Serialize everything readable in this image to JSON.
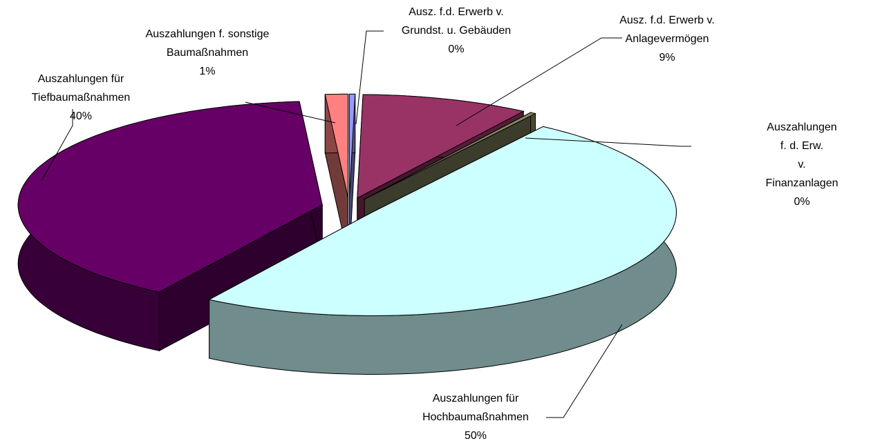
{
  "chart_data": {
    "type": "pie",
    "categories": [
      "Ausz. f.d. Erwerb v.\nGrundst. u. Gebäuden",
      "Ausz. f.d. Erwerb v.\nAnlagevermögen",
      "Auszahlungen f. d. Erw.\nv. Finanzanlagen",
      "Auszahlungen für\nHochbaumaßnahmen",
      "Auszahlungen für\nTiefbaumaßnahmen",
      "Auszahlungen f. sonstige\nBaumaßnahmen"
    ],
    "values": [
      0.3,
      8.9,
      0.3,
      49.5,
      39.8,
      1.2
    ],
    "value_labels": [
      "0%",
      "9%",
      "0%",
      "50%",
      "40%",
      "1%"
    ],
    "colors": [
      "#9999ff",
      "#993366",
      "#858562",
      "#ccffff",
      "#660066",
      "#ff8080"
    ]
  }
}
